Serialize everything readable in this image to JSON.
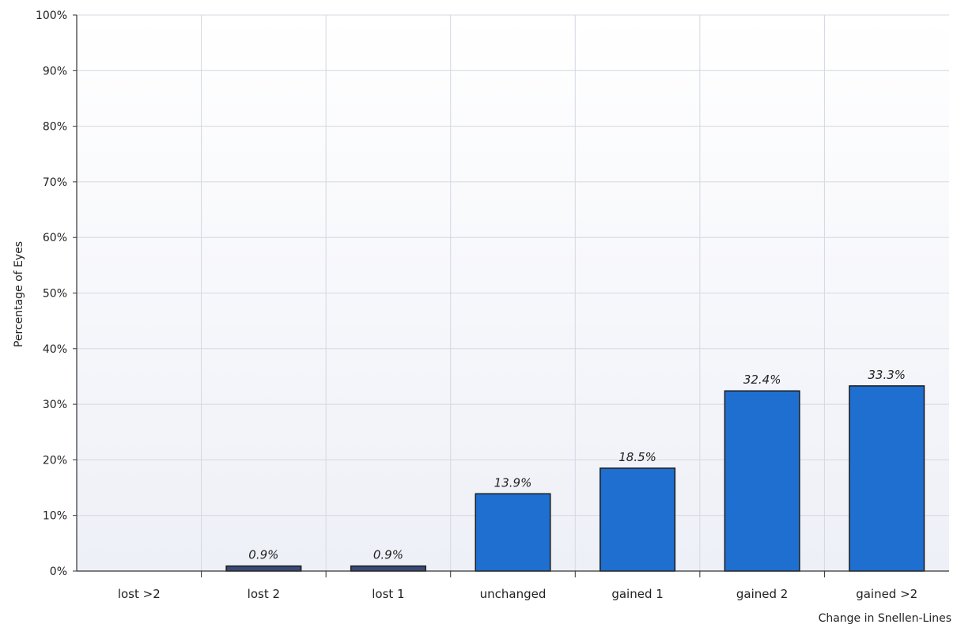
{
  "chart_data": {
    "type": "bar",
    "title": "",
    "xlabel": "Change in Snellen-Lines",
    "ylabel": "Percentage of Eyes",
    "categories": [
      "lost >2",
      "lost 2",
      "lost 1",
      "unchanged",
      "gained 1",
      "gained 2",
      "gained >2"
    ],
    "values": [
      0,
      0.9,
      0.9,
      13.9,
      18.5,
      32.4,
      33.3
    ],
    "data_labels": [
      "",
      "0.9%",
      "0.9%",
      "13.9%",
      "18.5%",
      "32.4%",
      "33.3%"
    ],
    "ylim": [
      0,
      100
    ],
    "yticks": [
      0,
      10,
      20,
      30,
      40,
      50,
      60,
      70,
      80,
      90,
      100
    ],
    "ytick_labels": [
      "0%",
      "10%",
      "20%",
      "30%",
      "40%",
      "50%",
      "60%",
      "70%",
      "80%",
      "90%",
      "100%"
    ],
    "grid": true,
    "colors": {
      "bar_large": "#1f6fd0",
      "bar_small": "#3a4a78",
      "bar_outline": "#1a1a1a",
      "grid": "#d4d8e2",
      "plot_bg_top": "#ffffff",
      "plot_bg_bottom": "#eef0f7"
    }
  }
}
